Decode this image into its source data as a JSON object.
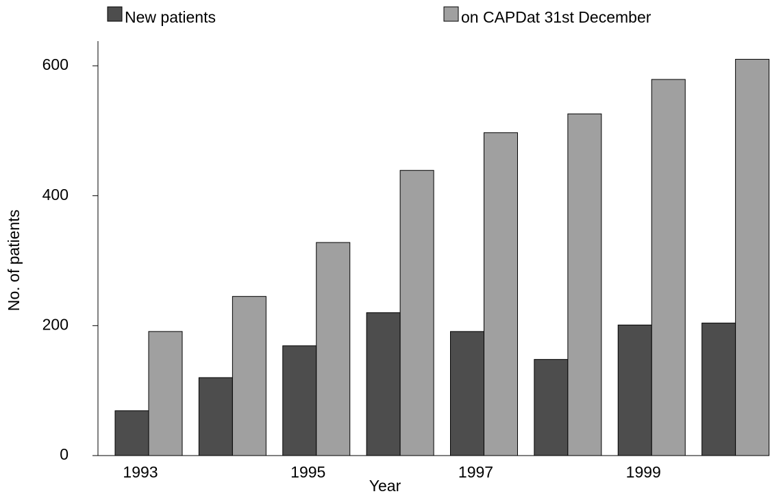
{
  "chart_data": {
    "type": "bar",
    "categories": [
      "1993",
      null,
      "1995",
      null,
      "1997",
      null,
      "1999",
      null
    ],
    "series": [
      {
        "name": "New patients",
        "color": "#4d4d4d",
        "values": [
          69,
          120,
          169,
          220,
          191,
          148,
          201,
          204
        ]
      },
      {
        "name": "on CAPDat 31st December",
        "color": "#a0a0a0",
        "values": [
          191,
          245,
          328,
          439,
          497,
          526,
          579,
          610
        ]
      }
    ],
    "x_label": "Year",
    "y_label": "No. of patients",
    "ylim": [
      0,
      638
    ],
    "yticks": [
      0,
      200,
      400,
      600
    ],
    "grid": false,
    "legend": "top"
  }
}
